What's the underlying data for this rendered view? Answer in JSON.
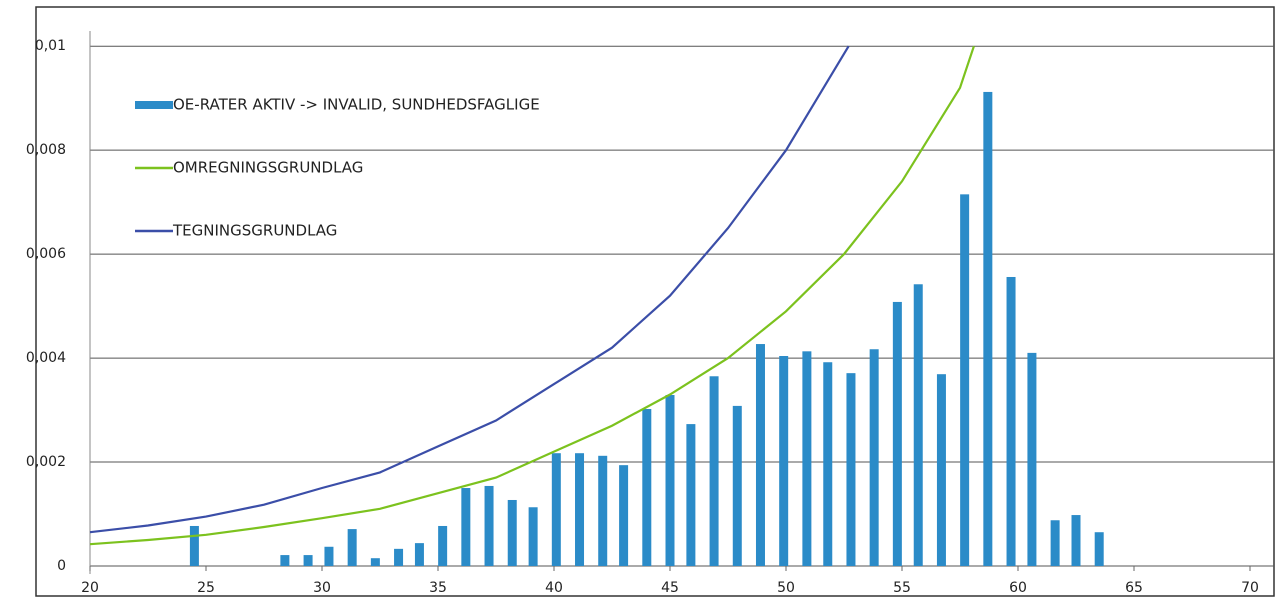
{
  "chart_data": {
    "type": "combo",
    "xlim": [
      20,
      70
    ],
    "xticks": [
      20,
      25,
      30,
      35,
      40,
      45,
      50,
      55,
      60,
      65,
      70
    ],
    "ylim": [
      0,
      0.0101
    ],
    "yticks": [
      0,
      {
        "value": 0.002,
        "label": "0,002"
      },
      {
        "value": 0.004,
        "label": "0,004"
      },
      {
        "value": 0.006,
        "label": "0,006"
      },
      {
        "value": 0.008,
        "label": "0,008"
      },
      {
        "value": 0.01,
        "label": "0,01"
      }
    ],
    "grid": true,
    "legend": "top-left",
    "series": [
      {
        "name": "OE-RATER AKTIV -> INVALID, SUNDHEDSFAGLIGE",
        "type": "bar",
        "color": "#2b8bc8",
        "x": [
          24.5,
          28.4,
          29.4,
          30.3,
          31.3,
          32.3,
          33.3,
          34.2,
          35.2,
          36.2,
          37.2,
          38.2,
          39.1,
          40.1,
          41.1,
          42.1,
          43.0,
          44.0,
          45.0,
          45.9,
          46.9,
          47.9,
          48.9,
          49.9,
          50.9,
          51.8,
          52.8,
          53.8,
          54.8,
          55.7,
          56.7,
          57.7,
          58.7,
          59.7,
          60.6,
          61.6,
          62.5,
          63.5
        ],
        "values": [
          0.00077,
          0.00021,
          0.00021,
          0.00037,
          0.00071,
          0.00015,
          0.00033,
          0.00044,
          0.00077,
          0.0015,
          0.00154,
          0.00127,
          0.00113,
          0.00217,
          0.00217,
          0.00212,
          0.00194,
          0.00302,
          0.00329,
          0.00273,
          0.00365,
          0.00308,
          0.00427,
          0.00404,
          0.00413,
          0.00392,
          0.00371,
          0.00417,
          0.00508,
          0.00542,
          0.00369,
          0.00715,
          0.00912,
          0.00556,
          0.0041,
          0.00088,
          0.00098,
          0.00065
        ]
      },
      {
        "name": "OMREGNINGSGRUNDLAG",
        "type": "line",
        "color": "#7cc21e",
        "x": [
          20,
          22.5,
          25,
          27.5,
          30,
          32.5,
          35,
          37.5,
          40,
          42.5,
          45,
          47.5,
          50,
          52.5,
          55,
          57.5,
          58.1
        ],
        "values": [
          0.00042,
          0.0005,
          0.0006,
          0.00075,
          0.00092,
          0.0011,
          0.0014,
          0.0017,
          0.0022,
          0.0027,
          0.0033,
          0.004,
          0.0049,
          0.006,
          0.0074,
          0.0092,
          0.01
        ]
      },
      {
        "name": "TEGNINGSGRUNDLAG",
        "type": "line",
        "color": "#3b4ea8",
        "x": [
          20,
          22.5,
          25,
          27.5,
          30,
          32.5,
          35,
          37.5,
          40,
          42.5,
          45,
          47.5,
          50,
          52.7
        ],
        "values": [
          0.00065,
          0.00078,
          0.00095,
          0.00118,
          0.0015,
          0.0018,
          0.0023,
          0.0028,
          0.0035,
          0.0042,
          0.0052,
          0.0065,
          0.008,
          0.01
        ]
      }
    ]
  }
}
